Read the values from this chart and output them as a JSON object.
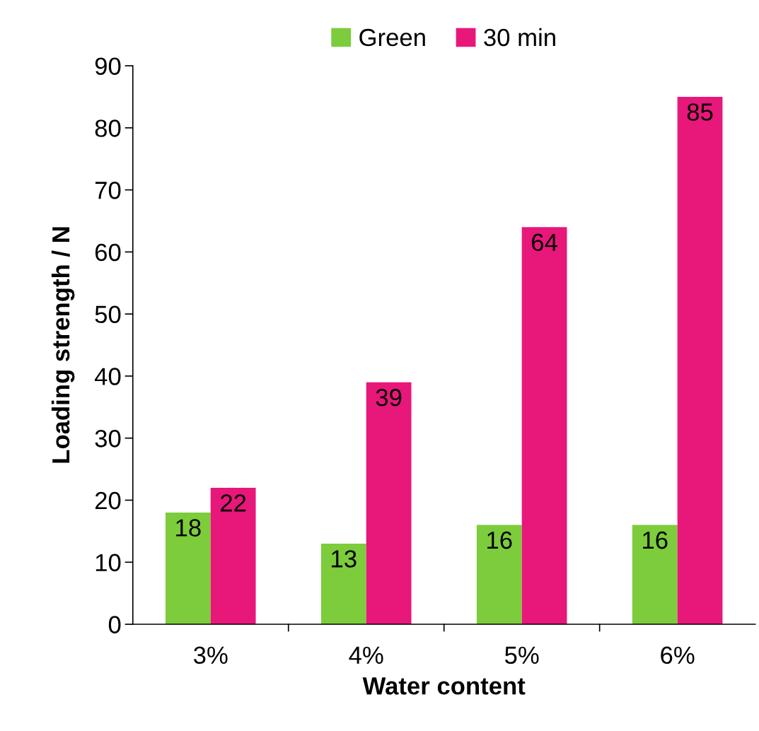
{
  "chart_data": {
    "type": "bar",
    "xlabel": "Water content",
    "ylabel": "Loading strength / N",
    "categories": [
      "3%",
      "4%",
      "5%",
      "6%"
    ],
    "series": [
      {
        "name": "Green",
        "color": "#7ccc3c",
        "values": [
          18,
          13,
          16,
          16
        ]
      },
      {
        "name": "30 min",
        "color": "#e8177a",
        "values": [
          22,
          39,
          64,
          85
        ]
      }
    ],
    "ylim": [
      0,
      90
    ],
    "yticks": [
      0,
      10,
      20,
      30,
      40,
      50,
      60,
      70,
      80,
      90
    ],
    "data_labels": true,
    "legend": "top",
    "grid": false
  }
}
